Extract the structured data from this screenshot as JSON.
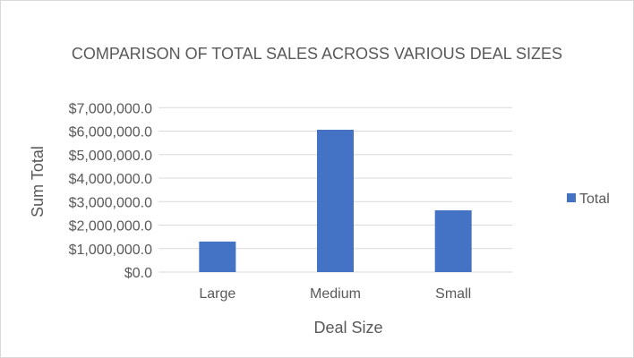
{
  "chart_data": {
    "type": "bar",
    "title": "COMPARISON OF TOTAL SALES ACROSS VARIOUS DEAL SIZES",
    "xlabel": "Deal Size",
    "ylabel": "Sum Total",
    "categories": [
      "Large",
      "Medium",
      "Small"
    ],
    "series": [
      {
        "name": "Total",
        "values": [
          1300000,
          6060000,
          2630000
        ],
        "color": "#4472C4"
      }
    ],
    "ylim": [
      0,
      7000000
    ],
    "yticks": [
      0,
      1000000,
      2000000,
      3000000,
      4000000,
      5000000,
      6000000,
      7000000
    ],
    "ytick_labels": [
      "$0.0",
      "$1,000,000.0",
      "$2,000,000.0",
      "$3,000,000.0",
      "$4,000,000.0",
      "$5,000,000.0",
      "$6,000,000.0",
      "$7,000,000.0"
    ],
    "grid": true,
    "legend": "right"
  }
}
